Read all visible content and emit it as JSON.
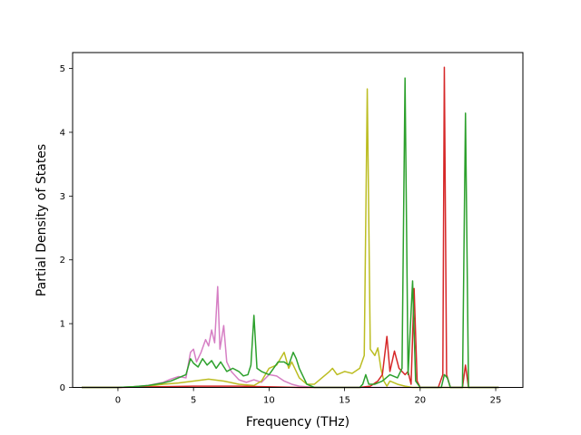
{
  "chart_data": {
    "type": "line",
    "title": "",
    "xlabel": "Frequency (THz)",
    "ylabel": "Partial Density of States",
    "xlim": [
      -3.0,
      26.8
    ],
    "ylim": [
      0,
      5.25
    ],
    "xticks": [
      0,
      5,
      10,
      15,
      20,
      25
    ],
    "yticks": [
      0,
      1,
      2,
      3,
      4,
      5
    ],
    "grid": false,
    "legend": "none",
    "series": [
      {
        "color": "#d67fc4",
        "points": [
          [
            -2.4,
            0
          ],
          [
            0,
            0
          ],
          [
            1,
            0.01
          ],
          [
            2,
            0.03
          ],
          [
            3,
            0.08
          ],
          [
            3.5,
            0.13
          ],
          [
            4,
            0.17
          ],
          [
            4.5,
            0.15
          ],
          [
            4.8,
            0.55
          ],
          [
            5,
            0.6
          ],
          [
            5.2,
            0.4
          ],
          [
            5.5,
            0.55
          ],
          [
            5.8,
            0.75
          ],
          [
            6,
            0.65
          ],
          [
            6.2,
            0.9
          ],
          [
            6.4,
            0.7
          ],
          [
            6.6,
            1.58
          ],
          [
            6.75,
            0.6
          ],
          [
            7,
            0.97
          ],
          [
            7.2,
            0.4
          ],
          [
            7.5,
            0.25
          ],
          [
            8,
            0.12
          ],
          [
            8.5,
            0.08
          ],
          [
            9,
            0.12
          ],
          [
            9.5,
            0.08
          ],
          [
            10,
            0.2
          ],
          [
            10.5,
            0.18
          ],
          [
            11,
            0.1
          ],
          [
            11.5,
            0.05
          ],
          [
            12,
            0.02
          ],
          [
            13,
            0
          ],
          [
            25.2,
            0
          ]
        ]
      },
      {
        "color": "#bcbd22",
        "points": [
          [
            -2.4,
            0
          ],
          [
            0,
            0
          ],
          [
            1,
            0.01
          ],
          [
            2,
            0.02
          ],
          [
            3,
            0.05
          ],
          [
            4,
            0.07
          ],
          [
            5,
            0.1
          ],
          [
            6,
            0.13
          ],
          [
            7,
            0.1
          ],
          [
            8,
            0.05
          ],
          [
            9,
            0.03
          ],
          [
            9.5,
            0.1
          ],
          [
            10,
            0.3
          ],
          [
            10.5,
            0.35
          ],
          [
            11,
            0.55
          ],
          [
            11.3,
            0.3
          ],
          [
            11.5,
            0.4
          ],
          [
            12,
            0.15
          ],
          [
            12.5,
            0.05
          ],
          [
            13,
            0.05
          ],
          [
            13.5,
            0.15
          ],
          [
            14,
            0.25
          ],
          [
            14.2,
            0.3
          ],
          [
            14.5,
            0.2
          ],
          [
            15,
            0.25
          ],
          [
            15.5,
            0.22
          ],
          [
            16,
            0.3
          ],
          [
            16.3,
            0.5
          ],
          [
            16.5,
            4.68
          ],
          [
            16.7,
            0.6
          ],
          [
            17,
            0.5
          ],
          [
            17.2,
            0.62
          ],
          [
            17.4,
            0.3
          ],
          [
            17.6,
            0.1
          ],
          [
            17.8,
            0.02
          ],
          [
            18,
            0.1
          ],
          [
            18.5,
            0.05
          ],
          [
            19,
            0.02
          ],
          [
            19.5,
            0
          ],
          [
            20.2,
            0
          ],
          [
            25.2,
            0
          ]
        ]
      },
      {
        "color": "#d62728",
        "points": [
          [
            -2.4,
            0
          ],
          [
            0,
            0
          ],
          [
            5,
            0.02
          ],
          [
            8,
            0.02
          ],
          [
            12,
            0
          ],
          [
            16,
            0
          ],
          [
            16.7,
            0.02
          ],
          [
            17.2,
            0.1
          ],
          [
            17.5,
            0.2
          ],
          [
            17.8,
            0.8
          ],
          [
            18,
            0.25
          ],
          [
            18.3,
            0.57
          ],
          [
            18.6,
            0.3
          ],
          [
            19,
            0.2
          ],
          [
            19.2,
            0.25
          ],
          [
            19.4,
            0.05
          ],
          [
            19.6,
            1.55
          ],
          [
            19.8,
            0.1
          ],
          [
            20,
            0
          ],
          [
            21.2,
            0
          ],
          [
            21.5,
            0.2
          ],
          [
            21.6,
            5.02
          ],
          [
            21.75,
            0.2
          ],
          [
            22,
            0
          ],
          [
            22.8,
            0
          ],
          [
            23,
            0.35
          ],
          [
            23.2,
            0
          ],
          [
            25.2,
            0
          ]
        ]
      },
      {
        "color": "#2ca02c",
        "points": [
          [
            -2.4,
            0
          ],
          [
            0,
            0
          ],
          [
            1,
            0.01
          ],
          [
            2,
            0.03
          ],
          [
            3,
            0.07
          ],
          [
            3.5,
            0.1
          ],
          [
            4,
            0.15
          ],
          [
            4.5,
            0.2
          ],
          [
            4.8,
            0.45
          ],
          [
            5,
            0.38
          ],
          [
            5.3,
            0.32
          ],
          [
            5.6,
            0.45
          ],
          [
            5.9,
            0.35
          ],
          [
            6.2,
            0.42
          ],
          [
            6.5,
            0.3
          ],
          [
            6.8,
            0.4
          ],
          [
            7.2,
            0.25
          ],
          [
            7.6,
            0.3
          ],
          [
            8,
            0.25
          ],
          [
            8.3,
            0.18
          ],
          [
            8.6,
            0.2
          ],
          [
            8.8,
            0.35
          ],
          [
            9,
            1.13
          ],
          [
            9.2,
            0.3
          ],
          [
            9.5,
            0.25
          ],
          [
            10,
            0.2
          ],
          [
            10.3,
            0.3
          ],
          [
            10.6,
            0.4
          ],
          [
            11,
            0.4
          ],
          [
            11.3,
            0.35
          ],
          [
            11.6,
            0.55
          ],
          [
            11.8,
            0.45
          ],
          [
            12,
            0.3
          ],
          [
            12.5,
            0.05
          ],
          [
            13,
            0
          ],
          [
            16,
            0
          ],
          [
            16.2,
            0.05
          ],
          [
            16.4,
            0.2
          ],
          [
            16.6,
            0.05
          ],
          [
            17,
            0.05
          ],
          [
            17.5,
            0.1
          ],
          [
            18,
            0.2
          ],
          [
            18.5,
            0.15
          ],
          [
            18.8,
            0.3
          ],
          [
            19,
            4.85
          ],
          [
            19.2,
            0.2
          ],
          [
            19.5,
            1.67
          ],
          [
            19.7,
            0.1
          ],
          [
            20,
            0
          ],
          [
            21.4,
            0
          ],
          [
            21.6,
            0.2
          ],
          [
            21.8,
            0.15
          ],
          [
            22,
            0
          ],
          [
            22.8,
            0
          ],
          [
            23,
            4.3
          ],
          [
            23.2,
            0
          ],
          [
            25.2,
            0
          ]
        ]
      }
    ]
  }
}
